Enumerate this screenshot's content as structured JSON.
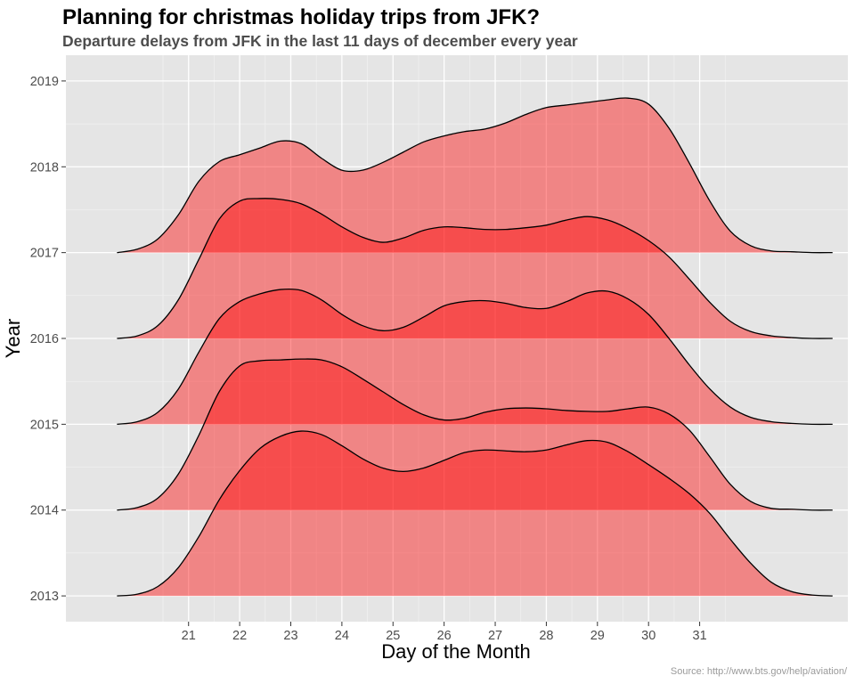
{
  "chart_data": {
    "type": "ridgeline",
    "title": "Planning for christmas holiday trips from JFK?",
    "subtitle": "Departure delays from JFK in the last 11 days of december every year",
    "xlabel": "Day of the Month",
    "ylabel": "Year",
    "caption": "Source: http://www.bts.gov/help/aviation/",
    "x_ticks": [
      21,
      22,
      23,
      24,
      25,
      26,
      27,
      28,
      29,
      30,
      31
    ],
    "y_ticks": [
      2013,
      2014,
      2015,
      2016,
      2017,
      2018,
      2019
    ],
    "xlim": [
      18.6,
      33.9
    ],
    "ylim": [
      2012.7,
      2019.3
    ],
    "grid": true,
    "fill_color": "#ff0000",
    "fill_opacity": 0.42,
    "line_color": "#000000",
    "panel_background": "#e5e5e5",
    "series": [
      {
        "baseline": 2013,
        "x": [
          19.6,
          20.0,
          20.4,
          20.8,
          21.2,
          21.6,
          22.0,
          22.4,
          22.8,
          23.2,
          23.6,
          24.0,
          24.4,
          24.8,
          25.2,
          25.6,
          26.0,
          26.4,
          26.8,
          27.2,
          27.6,
          28.0,
          28.4,
          28.8,
          29.2,
          29.6,
          30.0,
          30.4,
          30.8,
          31.2,
          31.6,
          32.0,
          32.4,
          32.8,
          33.2,
          33.6
        ],
        "y": [
          2013.0,
          2013.02,
          2013.11,
          2013.33,
          2013.69,
          2014.12,
          2014.46,
          2014.72,
          2014.86,
          2014.92,
          2014.88,
          2014.75,
          2014.6,
          2014.49,
          2014.45,
          2014.49,
          2014.58,
          2014.67,
          2014.7,
          2014.69,
          2014.68,
          2014.7,
          2014.76,
          2014.81,
          2014.79,
          2014.68,
          2014.53,
          2014.37,
          2014.19,
          2013.96,
          2013.66,
          2013.38,
          2013.16,
          2013.05,
          2013.01,
          2013.0
        ]
      },
      {
        "baseline": 2014,
        "x": [
          19.6,
          20.0,
          20.4,
          20.8,
          21.2,
          21.6,
          22.0,
          22.4,
          22.8,
          23.2,
          23.6,
          24.0,
          24.4,
          24.8,
          25.2,
          25.6,
          26.0,
          26.4,
          26.8,
          27.2,
          27.6,
          28.0,
          28.4,
          28.8,
          29.2,
          29.6,
          30.0,
          30.4,
          30.8,
          31.2,
          31.6,
          32.0,
          32.4,
          32.8,
          33.2,
          33.6
        ],
        "y": [
          2014.0,
          2014.03,
          2014.14,
          2014.42,
          2014.87,
          2015.38,
          2015.68,
          2015.74,
          2015.75,
          2015.76,
          2015.75,
          2015.67,
          2015.53,
          2015.38,
          2015.23,
          2015.11,
          2015.05,
          2015.07,
          2015.14,
          2015.18,
          2015.19,
          2015.18,
          2015.16,
          2015.15,
          2015.15,
          2015.18,
          2015.2,
          2015.12,
          2014.93,
          2014.62,
          2014.3,
          2014.1,
          2014.02,
          2014.01,
          2014.0,
          2014.0
        ]
      },
      {
        "baseline": 2015,
        "x": [
          19.6,
          20.0,
          20.4,
          20.8,
          21.2,
          21.6,
          22.0,
          22.4,
          22.8,
          23.2,
          23.6,
          24.0,
          24.4,
          24.8,
          25.2,
          25.6,
          26.0,
          26.4,
          26.8,
          27.2,
          27.6,
          28.0,
          28.4,
          28.8,
          29.2,
          29.6,
          30.0,
          30.4,
          30.8,
          31.2,
          31.6,
          32.0,
          32.4,
          32.8,
          33.2,
          33.6
        ],
        "y": [
          2015.0,
          2015.03,
          2015.14,
          2015.41,
          2015.84,
          2016.23,
          2016.43,
          2016.52,
          2016.57,
          2016.56,
          2016.45,
          2016.28,
          2016.15,
          2016.09,
          2016.13,
          2016.25,
          2016.38,
          2016.43,
          2016.44,
          2016.41,
          2016.36,
          2016.35,
          2016.43,
          2016.53,
          2016.55,
          2016.46,
          2016.28,
          2016.0,
          2015.69,
          2015.41,
          2015.2,
          2015.08,
          2015.03,
          2015.01,
          2015.0,
          2015.0
        ]
      },
      {
        "baseline": 2016,
        "x": [
          19.6,
          20.0,
          20.4,
          20.8,
          21.2,
          21.6,
          22.0,
          22.4,
          22.8,
          23.2,
          23.6,
          24.0,
          24.4,
          24.8,
          25.2,
          25.6,
          26.0,
          26.4,
          26.8,
          27.2,
          27.6,
          28.0,
          28.4,
          28.8,
          29.2,
          29.6,
          30.0,
          30.4,
          30.8,
          31.2,
          31.6,
          32.0,
          32.4,
          32.8,
          33.2,
          33.6
        ],
        "y": [
          2016.0,
          2016.03,
          2016.15,
          2016.45,
          2016.92,
          2017.39,
          2017.6,
          2017.63,
          2017.62,
          2017.57,
          2017.45,
          2017.3,
          2017.18,
          2017.12,
          2017.17,
          2017.26,
          2017.3,
          2017.29,
          2017.27,
          2017.27,
          2017.29,
          2017.32,
          2017.38,
          2017.42,
          2017.38,
          2017.28,
          2017.14,
          2016.95,
          2016.69,
          2016.42,
          2016.2,
          2016.08,
          2016.03,
          2016.01,
          2016.0,
          2016.0
        ]
      },
      {
        "baseline": 2017,
        "x": [
          19.6,
          20.0,
          20.4,
          20.8,
          21.2,
          21.6,
          22.0,
          22.4,
          22.8,
          23.2,
          23.6,
          24.0,
          24.4,
          24.8,
          25.2,
          25.6,
          26.0,
          26.4,
          26.8,
          27.2,
          27.6,
          28.0,
          28.4,
          28.8,
          29.2,
          29.6,
          30.0,
          30.4,
          30.8,
          31.2,
          31.6,
          32.0,
          32.4,
          32.8,
          33.2,
          33.6
        ],
        "y": [
          2017.0,
          2017.04,
          2017.16,
          2017.44,
          2017.83,
          2018.06,
          2018.14,
          2018.22,
          2018.3,
          2018.27,
          2018.1,
          2017.96,
          2017.96,
          2018.05,
          2018.17,
          2018.29,
          2018.36,
          2018.41,
          2018.44,
          2018.51,
          2018.61,
          2018.69,
          2018.72,
          2018.75,
          2018.78,
          2018.8,
          2018.73,
          2018.45,
          2018.04,
          2017.6,
          2017.25,
          2017.08,
          2017.02,
          2017.01,
          2017.0,
          2017.0
        ]
      }
    ]
  }
}
